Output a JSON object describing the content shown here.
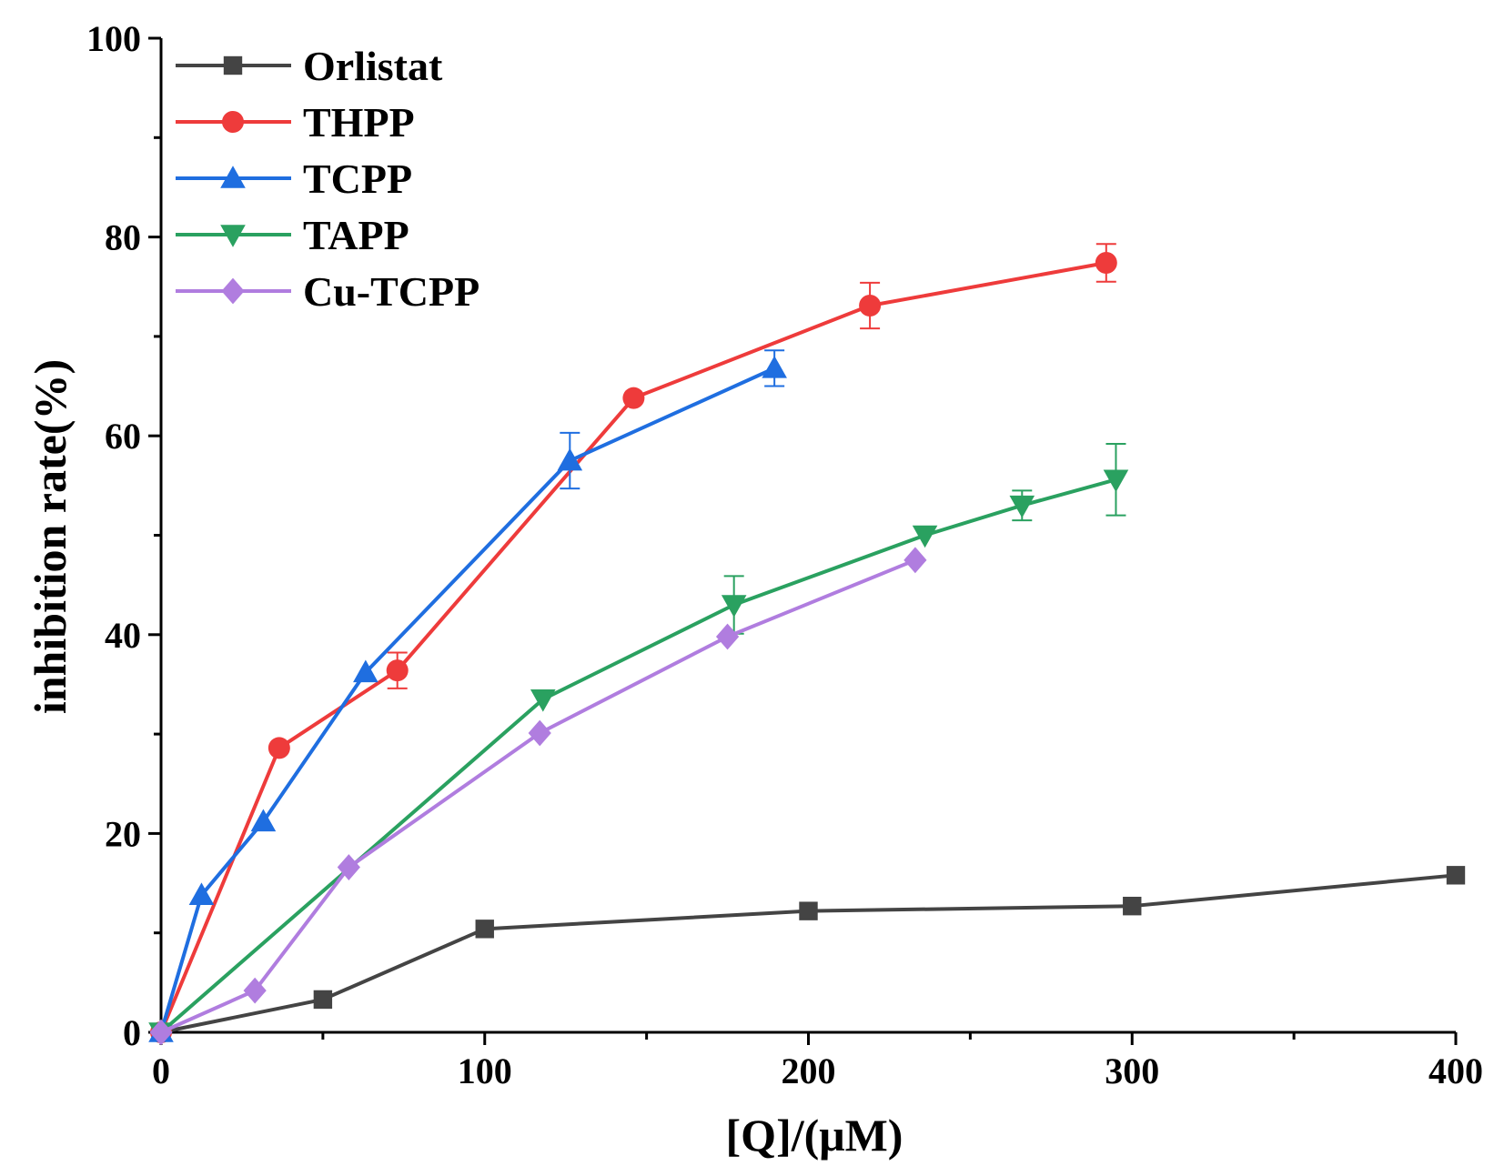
{
  "chart_data": {
    "type": "line",
    "title": "",
    "xlabel": "[Q]/(μM)",
    "ylabel": "inhibition rate(%)",
    "xlim": [
      0,
      400
    ],
    "ylim": [
      0,
      100
    ],
    "x_ticks": [
      0,
      100,
      200,
      300,
      400
    ],
    "y_ticks": [
      0,
      20,
      40,
      60,
      80,
      100
    ],
    "x_tick_labels": [
      "0",
      "100",
      "200",
      "300",
      "400"
    ],
    "y_tick_labels": [
      "0",
      "20",
      "40",
      "60",
      "80",
      "100"
    ],
    "legend_position": "top-left",
    "grid": false,
    "series": [
      {
        "name": "Orlistat",
        "color": "#444444",
        "marker": "square",
        "x": [
          0,
          50,
          100,
          200,
          300,
          400
        ],
        "y": [
          0,
          3.3,
          10.4,
          12.2,
          12.7,
          15.8
        ],
        "err": [
          0,
          0,
          0,
          0,
          0,
          0
        ]
      },
      {
        "name": "THPP",
        "color": "#ee3b3b",
        "marker": "circle",
        "x": [
          0,
          36.5,
          73,
          146,
          219,
          292
        ],
        "y": [
          0,
          28.6,
          36.4,
          63.8,
          73.1,
          77.4
        ],
        "err": [
          0,
          0,
          1.8,
          0,
          2.3,
          1.9
        ]
      },
      {
        "name": "TCPP",
        "color": "#1f6ee0",
        "marker": "triangle-up",
        "x": [
          0,
          12.5,
          31.6,
          63.2,
          126.3,
          189.5
        ],
        "y": [
          0,
          13.8,
          21.2,
          36.2,
          57.5,
          66.8
        ],
        "err": [
          0,
          0,
          0,
          0,
          2.8,
          1.8
        ]
      },
      {
        "name": "TAPP",
        "color": "#2aa160",
        "marker": "triangle-down",
        "x": [
          0,
          118,
          177,
          236,
          266,
          295
        ],
        "y": [
          0,
          33.5,
          43,
          50,
          53,
          55.6
        ],
        "err": [
          0,
          0,
          2.9,
          0,
          1.5,
          3.6
        ]
      },
      {
        "name": "Cu-TCPP",
        "color": "#b07ddf",
        "marker": "diamond",
        "x": [
          0,
          29,
          58,
          117,
          175,
          233
        ],
        "y": [
          0,
          4.2,
          16.6,
          30.1,
          39.8,
          47.5
        ],
        "err": [
          0,
          0,
          0,
          0,
          0,
          0
        ]
      }
    ]
  }
}
